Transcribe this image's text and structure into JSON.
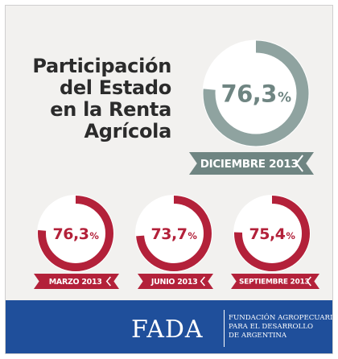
{
  "title_lines": [
    "Participación",
    "del Estado",
    "en la Renta",
    "Agrícola"
  ],
  "colors": {
    "main_ring": "#8fa3a0",
    "main_value": "#6f8582",
    "main_ribbon": "#6f8582",
    "small_ring": "#b3213a",
    "small_ribbon": "#b3213a",
    "footer": "#1f4f9b"
  },
  "chart_data": [
    {
      "type": "pie",
      "title": "",
      "period": "DICIEMBRE 2013",
      "value": 76.3,
      "display_value": "76,3",
      "unit": "%"
    },
    {
      "type": "pie",
      "title": "",
      "period": "MARZO 2013",
      "value": 76.3,
      "display_value": "76,3",
      "unit": "%"
    },
    {
      "type": "pie",
      "title": "",
      "period": "JUNIO 2013",
      "value": 73.7,
      "display_value": "73,7",
      "unit": "%"
    },
    {
      "type": "pie",
      "title": "",
      "period": "SEPTIEMBRE 2013",
      "value": 75.4,
      "display_value": "75,4",
      "unit": "%"
    }
  ],
  "footer": {
    "logo": "FADA",
    "org_lines": [
      "FUNDACIÓN AGROPECUARIA",
      "PARA EL DESARROLLO",
      "DE ARGENTINA"
    ]
  }
}
